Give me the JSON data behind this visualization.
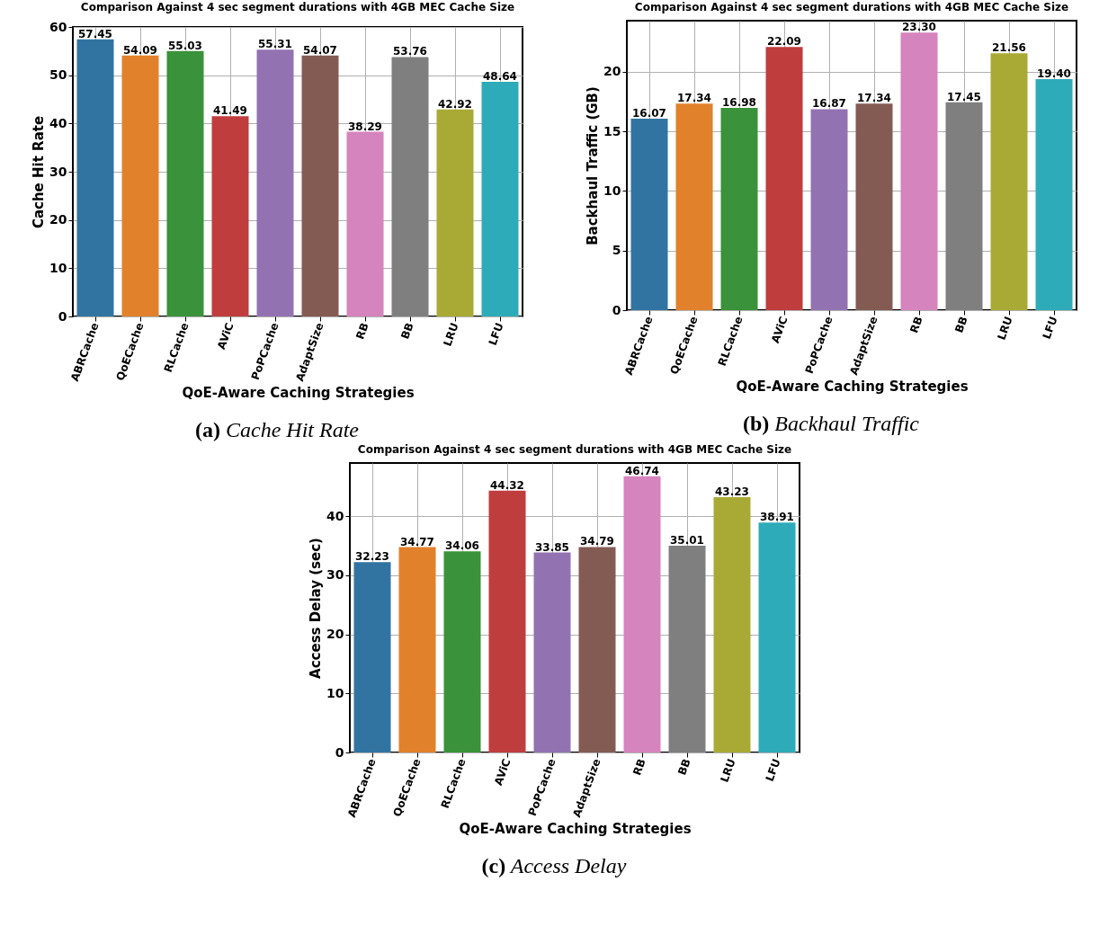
{
  "chart_data": [
    {
      "type": "bar",
      "title": "Comparison Against 4 sec segment durations with 4GB MEC Cache Size",
      "xlabel": "QoE-Aware Caching Strategies",
      "ylabel": "Cache Hit Rate",
      "categories": [
        "ABRCache",
        "QoECache",
        "RLCache",
        "AViC",
        "PoPCache",
        "AdaptSize",
        "RB",
        "BB",
        "LRU",
        "LFU"
      ],
      "values": [
        57.45,
        54.09,
        55.03,
        41.49,
        55.31,
        54.07,
        38.29,
        53.76,
        42.92,
        48.64
      ],
      "colors": [
        "#3274a1",
        "#e1812c",
        "#3a923a",
        "#c03d3e",
        "#9372b2",
        "#845b53",
        "#d684bd",
        "#7f7f7f",
        "#a9aa35",
        "#2eabb8"
      ],
      "ylim": [
        0,
        60
      ],
      "yticks": [
        0,
        10,
        20,
        30,
        40,
        50,
        60
      ],
      "grid": true,
      "data_labels": true,
      "annotations": [
        "(a) Cache Hit Rate"
      ]
    },
    {
      "type": "bar",
      "title": "Comparison Against 4 sec segment durations with 4GB MEC Cache Size",
      "xlabel": "QoE-Aware Caching Strategies",
      "ylabel": "Backhaul Traffic (GB)",
      "categories": [
        "ABRCache",
        "QoECache",
        "RLCache",
        "AViC",
        "PoPCache",
        "AdaptSize",
        "RB",
        "BB",
        "LRU",
        "LFU"
      ],
      "values": [
        16.07,
        17.34,
        16.98,
        22.09,
        16.87,
        17.34,
        23.3,
        17.45,
        21.56,
        19.4
      ],
      "value_labels": [
        "16.07",
        "17.34",
        "16.98",
        "22.09",
        "16.87",
        "17.34",
        "23.30",
        "17.45",
        "21.56",
        "19.40"
      ],
      "colors": [
        "#3274a1",
        "#e1812c",
        "#3a923a",
        "#c03d3e",
        "#9372b2",
        "#845b53",
        "#d684bd",
        "#7f7f7f",
        "#a9aa35",
        "#2eabb8"
      ],
      "ylim": [
        0,
        24.3
      ],
      "yticks": [
        0,
        5,
        10,
        15,
        20
      ],
      "grid": true,
      "annotations": [
        "(b) Backhaul Traffic"
      ]
    },
    {
      "type": "bar",
      "title": "Comparison Against 4 sec segment durations with 4GB MEC Cache Size",
      "xlabel": "QoE-Aware Caching Strategies",
      "ylabel": "Access Delay (sec)",
      "categories": [
        "ABRCache",
        "QoECache",
        "RLCache",
        "AViC",
        "PoPCache",
        "AdaptSize",
        "RB",
        "BB",
        "LRU",
        "LFU"
      ],
      "values": [
        32.23,
        34.77,
        34.06,
        44.32,
        33.85,
        34.79,
        46.74,
        35.01,
        43.23,
        38.91
      ],
      "colors": [
        "#3274a1",
        "#e1812c",
        "#3a923a",
        "#c03d3e",
        "#9372b2",
        "#845b53",
        "#d684bd",
        "#7f7f7f",
        "#a9aa35",
        "#2eabb8"
      ],
      "ylim": [
        0,
        49
      ],
      "yticks": [
        0,
        10,
        20,
        30,
        40
      ],
      "grid": true,
      "data_labels": true,
      "annotations": [
        "(c) Access Delay"
      ]
    }
  ]
}
